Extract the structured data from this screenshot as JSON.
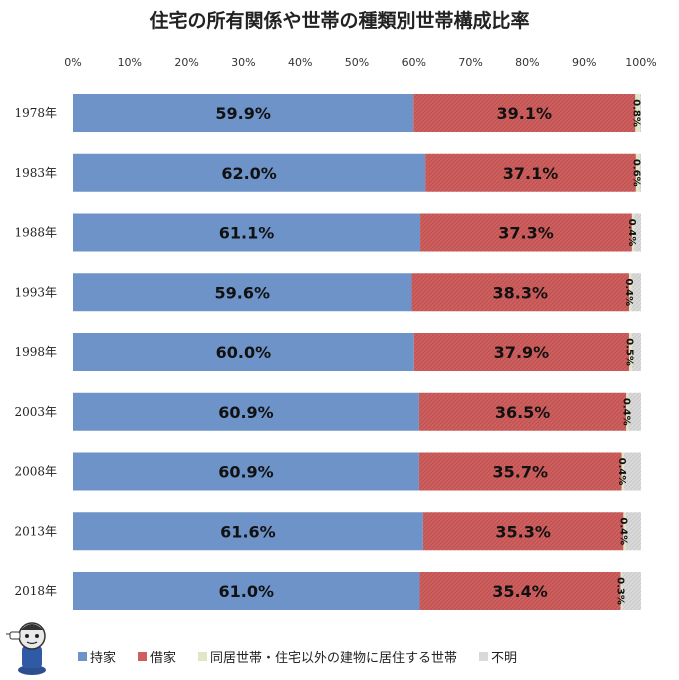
{
  "chart_data": {
    "type": "bar",
    "orientation": "horizontal",
    "stacked": true,
    "title": "住宅の所有関係や世帯の種類別世帯構成比率",
    "categories": [
      "1978年",
      "1983年",
      "1988年",
      "1993年",
      "1998年",
      "2003年",
      "2008年",
      "2013年",
      "2018年"
    ],
    "series": [
      {
        "name": "持家",
        "color": "#6d93c9",
        "values": [
          59.9,
          62.0,
          61.1,
          59.6,
          60.0,
          60.9,
          60.9,
          61.6,
          61.0
        ],
        "labels": [
          "59.9%",
          "62.0%",
          "61.1%",
          "59.6%",
          "60.0%",
          "60.9%",
          "60.9%",
          "61.6%",
          "61.0%"
        ]
      },
      {
        "name": "借家",
        "color": "#cd5f5f",
        "values": [
          39.1,
          37.1,
          37.3,
          38.3,
          37.9,
          36.5,
          35.7,
          35.3,
          35.4
        ],
        "labels": [
          "39.1%",
          "37.1%",
          "37.3%",
          "38.3%",
          "37.9%",
          "36.5%",
          "35.7%",
          "35.3%",
          "35.4%"
        ]
      },
      {
        "name": "同居世帯・住宅以外の建物に居住する世帯",
        "color": "#dfe8c6",
        "values": [
          0.8,
          0.6,
          0.4,
          0.4,
          0.5,
          0.4,
          0.4,
          0.4,
          0.3
        ],
        "labels": [
          "0.8%",
          "0.6%",
          "0.4%",
          "0.4%",
          "0.5%",
          "0.4%",
          "0.4%",
          "0.4%",
          "0.3%"
        ]
      },
      {
        "name": "不明",
        "color": "#d9d9d9",
        "values": [
          0.2,
          0.3,
          1.2,
          1.7,
          1.6,
          2.2,
          3.0,
          2.7,
          3.3
        ]
      }
    ],
    "xlim": [
      0,
      100
    ],
    "xticks": [
      "0%",
      "10%",
      "20%",
      "30%",
      "40%",
      "50%",
      "60%",
      "70%",
      "80%",
      "90%",
      "100%"
    ],
    "legend_position": "bottom",
    "grid": false
  }
}
